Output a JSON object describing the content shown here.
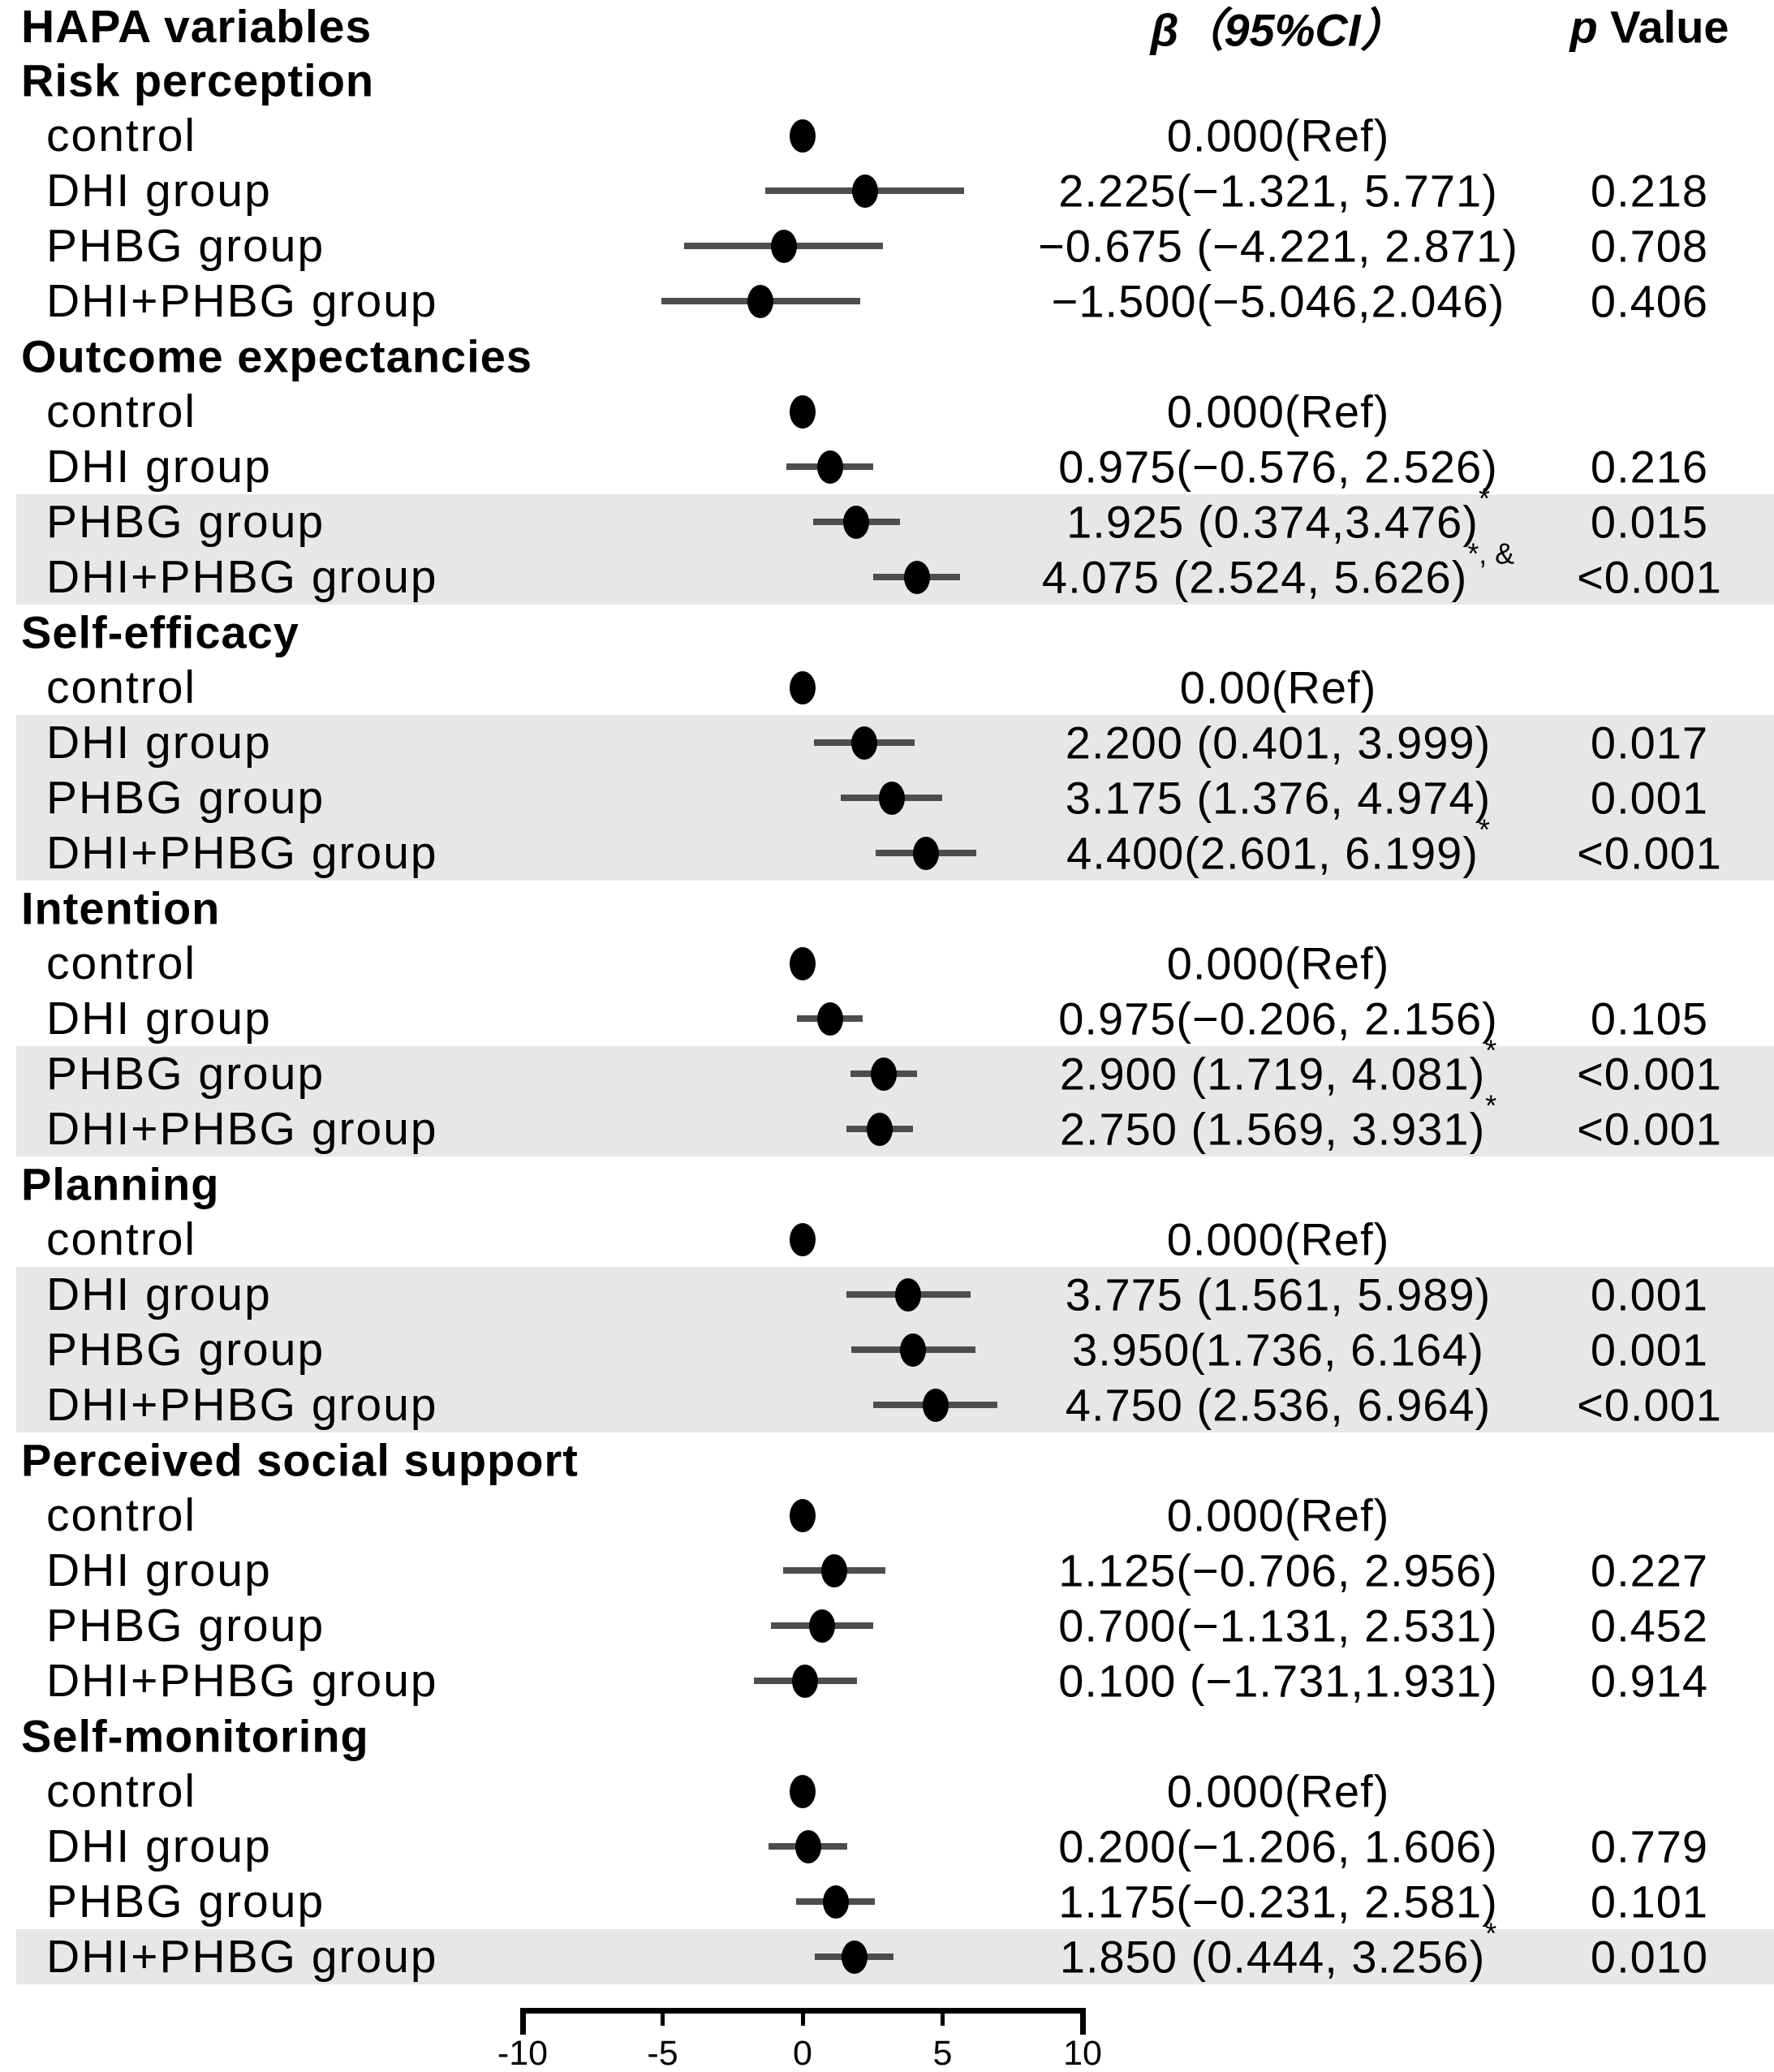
{
  "header": {
    "variables": "HAPA variables",
    "beta": "β（95%CI）",
    "p_italic": "p",
    "p_rest": " Value"
  },
  "style": {
    "band_color": "#e7e7e7",
    "bar_color": "#4d4d4d",
    "dot_color": "#000000",
    "line_color": "#000000",
    "text_color": "#000000"
  },
  "chart_data": {
    "type": "forest",
    "title": "",
    "xlabel": "",
    "x_axis": {
      "min": -10,
      "max": 10,
      "tick_values": [
        -10,
        -5,
        0,
        5,
        10
      ],
      "tick_labels": [
        "-10",
        "-5",
        "0",
        "5",
        "10"
      ]
    },
    "zero_reference": 0,
    "legend": "none",
    "sections": [
      {
        "name": "Risk perception",
        "rows": [
          {
            "label": "control",
            "beta": "0.000(Ref)",
            "sup": "",
            "p": "",
            "est": 0,
            "lo": null,
            "hi": null,
            "shaded": false
          },
          {
            "label": "DHI group",
            "beta": "2.225(−1.321, 5.771)",
            "sup": "",
            "p": "0.218",
            "est": 2.225,
            "lo": -1.321,
            "hi": 5.771,
            "shaded": false
          },
          {
            "label": "PHBG group",
            "beta": "−0.675 (−4.221, 2.871)",
            "sup": "",
            "p": "0.708",
            "est": -0.675,
            "lo": -4.221,
            "hi": 2.871,
            "shaded": false
          },
          {
            "label": "DHI+PHBG group",
            "beta": "−1.500(−5.046,2.046)",
            "sup": "",
            "p": "0.406",
            "est": -1.5,
            "lo": -5.046,
            "hi": 2.046,
            "shaded": false
          }
        ]
      },
      {
        "name": "Outcome expectancies",
        "rows": [
          {
            "label": "control",
            "beta": "0.000(Ref)",
            "sup": "",
            "p": "",
            "est": 0,
            "lo": null,
            "hi": null,
            "shaded": false
          },
          {
            "label": "DHI group",
            "beta": "0.975(−0.576, 2.526)",
            "sup": "",
            "p": "0.216",
            "est": 0.975,
            "lo": -0.576,
            "hi": 2.526,
            "shaded": false
          },
          {
            "label": "PHBG group",
            "beta": "1.925 (0.374,3.476)",
            "sup": "*",
            "p": "0.015",
            "est": 1.925,
            "lo": 0.374,
            "hi": 3.476,
            "shaded": true
          },
          {
            "label": "DHI+PHBG group",
            "beta": "4.075 (2.524, 5.626)",
            "sup": "*, &",
            "p": "<0.001",
            "est": 4.075,
            "lo": 2.524,
            "hi": 5.626,
            "shaded": true
          }
        ]
      },
      {
        "name": "Self-efficacy",
        "rows": [
          {
            "label": "control",
            "beta": "0.00(Ref)",
            "sup": "",
            "p": "",
            "est": 0,
            "lo": null,
            "hi": null,
            "shaded": false
          },
          {
            "label": "DHI group",
            "beta": "2.200 (0.401, 3.999)",
            "sup": "",
            "p": "0.017",
            "est": 2.2,
            "lo": 0.401,
            "hi": 3.999,
            "shaded": true
          },
          {
            "label": "PHBG group",
            "beta": "3.175 (1.376, 4.974)",
            "sup": "",
            "p": "0.001",
            "est": 3.175,
            "lo": 1.376,
            "hi": 4.974,
            "shaded": true
          },
          {
            "label": "DHI+PHBG group",
            "beta": "4.400(2.601, 6.199)",
            "sup": "*",
            "p": "<0.001",
            "est": 4.4,
            "lo": 2.601,
            "hi": 6.199,
            "shaded": true
          }
        ]
      },
      {
        "name": "Intention",
        "rows": [
          {
            "label": "control",
            "beta": "0.000(Ref)",
            "sup": "",
            "p": "",
            "est": 0,
            "lo": null,
            "hi": null,
            "shaded": false
          },
          {
            "label": "DHI group",
            "beta": "0.975(−0.206, 2.156)",
            "sup": "",
            "p": "0.105",
            "est": 0.975,
            "lo": -0.206,
            "hi": 2.156,
            "shaded": false
          },
          {
            "label": "PHBG group",
            "beta": "2.900 (1.719, 4.081)",
            "sup": "*",
            "p": "<0.001",
            "est": 2.9,
            "lo": 1.719,
            "hi": 4.081,
            "shaded": true
          },
          {
            "label": "DHI+PHBG group",
            "beta": "2.750 (1.569, 3.931)",
            "sup": "*",
            "p": "<0.001",
            "est": 2.75,
            "lo": 1.569,
            "hi": 3.931,
            "shaded": true
          }
        ]
      },
      {
        "name": "Planning",
        "rows": [
          {
            "label": "control",
            "beta": "0.000(Ref)",
            "sup": "",
            "p": "",
            "est": 0,
            "lo": null,
            "hi": null,
            "shaded": false
          },
          {
            "label": "DHI group",
            "beta": "3.775 (1.561, 5.989)",
            "sup": "",
            "p": "0.001",
            "est": 3.775,
            "lo": 1.561,
            "hi": 5.989,
            "shaded": true
          },
          {
            "label": "PHBG group",
            "beta": "3.950(1.736, 6.164)",
            "sup": "",
            "p": "0.001",
            "est": 3.95,
            "lo": 1.736,
            "hi": 6.164,
            "shaded": true
          },
          {
            "label": "DHI+PHBG group",
            "beta": "4.750 (2.536, 6.964)",
            "sup": "",
            "p": "<0.001",
            "est": 4.75,
            "lo": 2.536,
            "hi": 6.964,
            "shaded": true
          }
        ]
      },
      {
        "name": "Perceived social support",
        "rows": [
          {
            "label": "control",
            "beta": "0.000(Ref)",
            "sup": "",
            "p": "",
            "est": 0,
            "lo": null,
            "hi": null,
            "shaded": false
          },
          {
            "label": "DHI group",
            "beta": "1.125(−0.706, 2.956)",
            "sup": "",
            "p": "0.227",
            "est": 1.125,
            "lo": -0.706,
            "hi": 2.956,
            "shaded": false
          },
          {
            "label": "PHBG group",
            "beta": "0.700(−1.131, 2.531)",
            "sup": "",
            "p": "0.452",
            "est": 0.7,
            "lo": -1.131,
            "hi": 2.531,
            "shaded": false
          },
          {
            "label": "DHI+PHBG group",
            "beta": "0.100 (−1.731,1.931)",
            "sup": "",
            "p": "0.914",
            "est": 0.1,
            "lo": -1.731,
            "hi": 1.931,
            "shaded": false
          }
        ]
      },
      {
        "name": "Self-monitoring",
        "rows": [
          {
            "label": "control",
            "beta": "0.000(Ref)",
            "sup": "",
            "p": "",
            "est": 0,
            "lo": null,
            "hi": null,
            "shaded": false
          },
          {
            "label": "DHI group",
            "beta": "0.200(−1.206, 1.606)",
            "sup": "",
            "p": "0.779",
            "est": 0.2,
            "lo": -1.206,
            "hi": 1.606,
            "shaded": false
          },
          {
            "label": "PHBG group",
            "beta": "1.175(−0.231, 2.581)",
            "sup": "",
            "p": "0.101",
            "est": 1.175,
            "lo": -0.231,
            "hi": 2.581,
            "shaded": false
          },
          {
            "label": "DHI+PHBG group",
            "beta": "1.850 (0.444, 3.256)",
            "sup": "*",
            "p": "0.010",
            "est": 1.85,
            "lo": 0.444,
            "hi": 3.256,
            "shaded": true
          }
        ]
      }
    ]
  }
}
